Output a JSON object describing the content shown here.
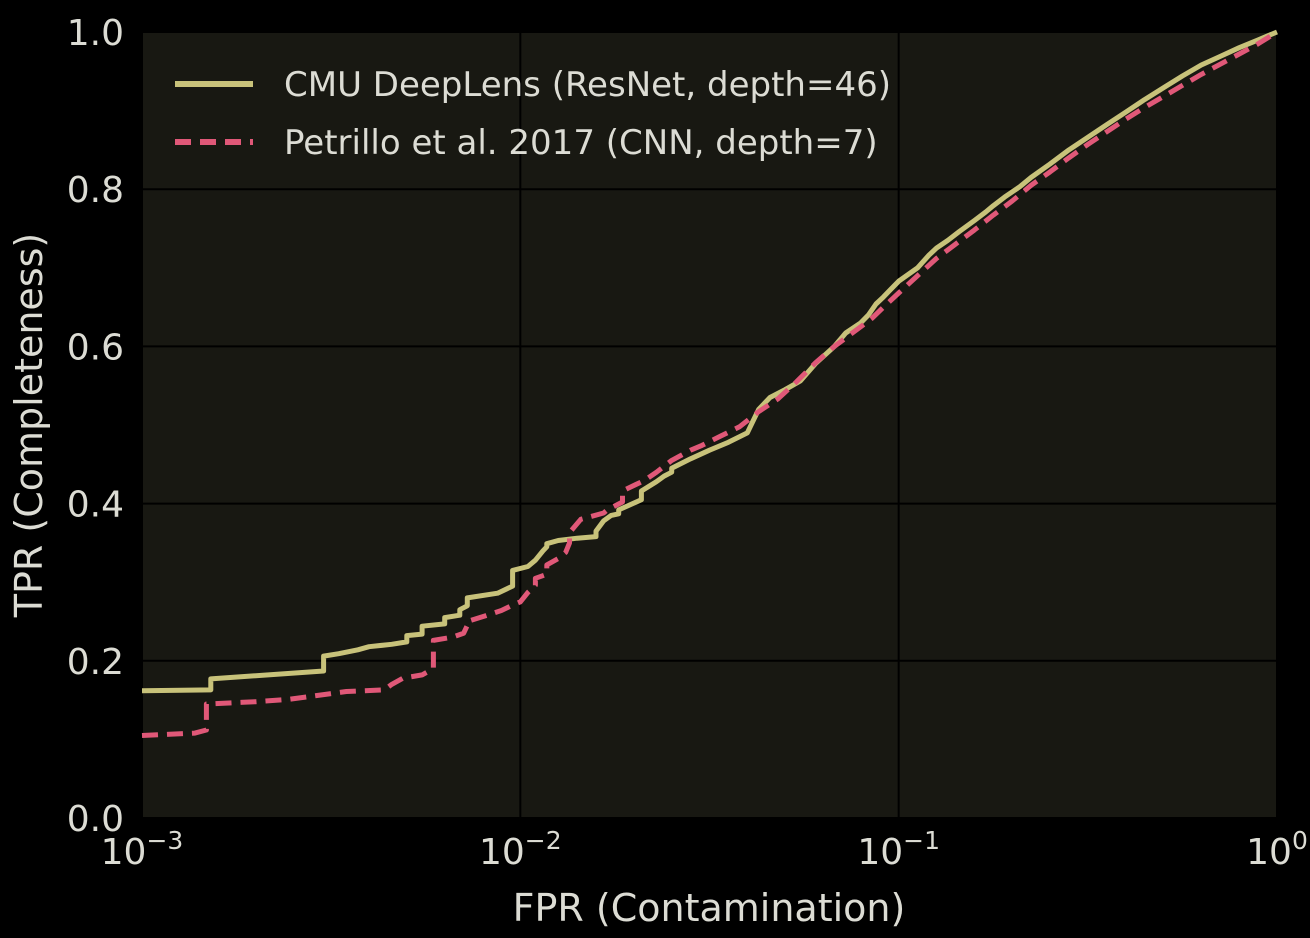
{
  "chart_data": {
    "type": "line",
    "xlabel": "FPR (Contamination)",
    "ylabel": "TPR (Completeness)",
    "xscale": "log",
    "xlim": [
      0.001,
      1
    ],
    "ylim": [
      0.0,
      1.0
    ],
    "x_ticks": [
      {
        "value": 0.001,
        "base": "10",
        "exp": "−3"
      },
      {
        "value": 0.01,
        "base": "10",
        "exp": "−2"
      },
      {
        "value": 0.1,
        "base": "10",
        "exp": "−1"
      },
      {
        "value": 1,
        "base": "10",
        "exp": "0"
      }
    ],
    "y_ticks": [
      "0.0",
      "0.2",
      "0.4",
      "0.6",
      "0.8",
      "1.0"
    ],
    "grid": true,
    "legend_position": "top-left",
    "background": "#181812",
    "series": [
      {
        "name": "CMU DeepLens (ResNet, depth=46)",
        "color": "#c8c27a",
        "dash": "solid",
        "x": [
          0.001,
          0.00152,
          0.00152,
          0.00302,
          0.00302,
          0.00331,
          0.00372,
          0.00398,
          0.00457,
          0.00501,
          0.00501,
          0.0055,
          0.0055,
          0.00631,
          0.00631,
          0.00692,
          0.00692,
          0.00724,
          0.00724,
          0.00871,
          0.00954,
          0.00954,
          0.01047,
          0.01096,
          0.01148,
          0.01175,
          0.01175,
          0.01259,
          0.01413,
          0.01585,
          0.01585,
          0.0166,
          0.01738,
          0.0182,
          0.0182,
          0.02089,
          0.02089,
          0.02291,
          0.02399,
          0.02512,
          0.02512,
          0.02818,
          0.03162,
          0.03548,
          0.03981,
          0.04074,
          0.04266,
          0.04571,
          0.05012,
          0.05495,
          0.06026,
          0.06761,
          0.07244,
          0.07943,
          0.08318,
          0.0871,
          0.0912,
          0.0955,
          0.1,
          0.1122,
          0.12023,
          0.12589,
          0.1349,
          0.14454,
          0.15849,
          0.16982,
          0.17783,
          0.19055,
          0.20893,
          0.22387,
          0.25119,
          0.28184,
          0.31623,
          0.35481,
          0.39811,
          0.44668,
          0.50119,
          0.56234,
          0.63096,
          0.70795,
          0.79433,
          0.89125,
          1.0
        ],
        "y": [
          0.162,
          0.163,
          0.177,
          0.187,
          0.206,
          0.209,
          0.214,
          0.218,
          0.221,
          0.224,
          0.232,
          0.234,
          0.244,
          0.247,
          0.255,
          0.258,
          0.265,
          0.27,
          0.28,
          0.286,
          0.295,
          0.315,
          0.32,
          0.328,
          0.34,
          0.345,
          0.349,
          0.353,
          0.356,
          0.358,
          0.365,
          0.378,
          0.385,
          0.387,
          0.392,
          0.405,
          0.416,
          0.428,
          0.435,
          0.44,
          0.445,
          0.457,
          0.468,
          0.478,
          0.49,
          0.5,
          0.52,
          0.535,
          0.545,
          0.556,
          0.578,
          0.6,
          0.617,
          0.63,
          0.64,
          0.654,
          0.663,
          0.673,
          0.683,
          0.7,
          0.716,
          0.725,
          0.735,
          0.746,
          0.76,
          0.771,
          0.779,
          0.79,
          0.803,
          0.815,
          0.832,
          0.85,
          0.866,
          0.882,
          0.898,
          0.914,
          0.929,
          0.944,
          0.958,
          0.969,
          0.98,
          0.99,
          1.0
        ]
      },
      {
        "name": "Petrillo et al. 2017 (CNN, depth=7)",
        "color": "#e05878",
        "dash": "dashed",
        "x": [
          0.001,
          0.00138,
          0.00148,
          0.00148,
          0.002,
          0.00245,
          0.00302,
          0.00347,
          0.00437,
          0.00457,
          0.0049,
          0.0055,
          0.00589,
          0.00589,
          0.00661,
          0.00708,
          0.00724,
          0.00724,
          0.00794,
          0.00891,
          0.00955,
          0.01,
          0.01047,
          0.01096,
          0.01096,
          0.01175,
          0.01175,
          0.01259,
          0.01318,
          0.01349,
          0.01349,
          0.01445,
          0.0166,
          0.01698,
          0.01862,
          0.01862,
          0.02138,
          0.02291,
          0.02512,
          0.02818,
          0.0302,
          0.03388,
          0.03802,
          0.04266,
          0.04786,
          0.0537,
          0.06026,
          0.06761,
          0.07586,
          0.08511,
          0.0912,
          0.1,
          0.1122,
          0.12589,
          0.14125,
          0.15849,
          0.17783,
          0.19953,
          0.22387,
          0.25119,
          0.28184,
          0.31623,
          0.35481,
          0.39811,
          0.44668,
          0.50119,
          0.56234,
          0.63096,
          0.70795,
          0.79433,
          0.89125,
          1.0
        ],
        "y": [
          0.105,
          0.108,
          0.112,
          0.145,
          0.148,
          0.151,
          0.157,
          0.161,
          0.163,
          0.17,
          0.178,
          0.182,
          0.19,
          0.226,
          0.23,
          0.235,
          0.245,
          0.25,
          0.256,
          0.264,
          0.271,
          0.275,
          0.287,
          0.296,
          0.305,
          0.31,
          0.322,
          0.33,
          0.338,
          0.35,
          0.363,
          0.38,
          0.388,
          0.392,
          0.402,
          0.416,
          0.43,
          0.44,
          0.455,
          0.468,
          0.474,
          0.486,
          0.498,
          0.517,
          0.533,
          0.555,
          0.579,
          0.6,
          0.618,
          0.636,
          0.65,
          0.668,
          0.69,
          0.712,
          0.73,
          0.748,
          0.767,
          0.785,
          0.805,
          0.822,
          0.84,
          0.857,
          0.873,
          0.889,
          0.904,
          0.918,
          0.932,
          0.946,
          0.959,
          0.972,
          0.985,
          1.0
        ]
      }
    ]
  }
}
